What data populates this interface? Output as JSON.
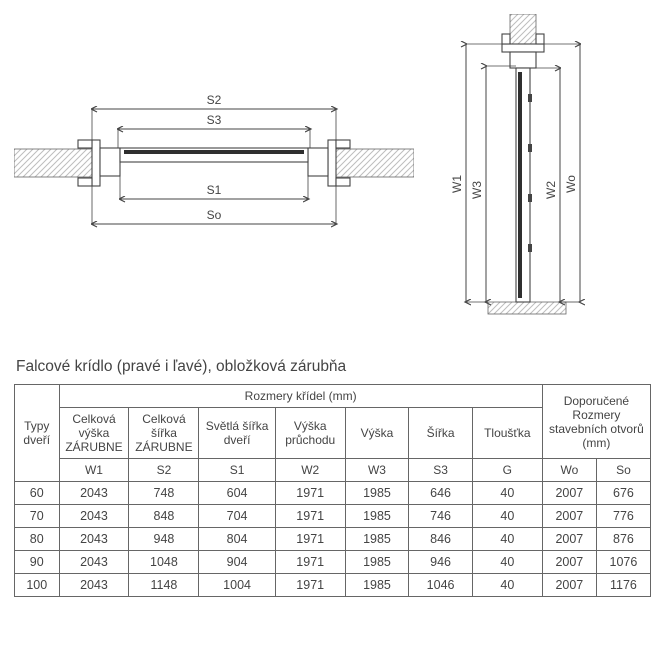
{
  "title": "Falcové krídlo (pravé i ľavé), obložková zárubňa",
  "diagram_top": {
    "labels": {
      "S2": "S2",
      "S3": "S3",
      "S1": "S1",
      "So": "So"
    },
    "colors": {
      "wall_hatch": "#bdbdbd",
      "line": "#444444",
      "door_accent": "#2f2f2f",
      "background": "#ffffff"
    }
  },
  "diagram_side": {
    "labels": {
      "W1": "W1",
      "W3": "W3",
      "W2": "W2",
      "Wo": "Wo"
    },
    "colors": {
      "wall_hatch": "#bdbdbd",
      "line": "#444444",
      "door_accent": "#2f2f2f",
      "background": "#ffffff"
    }
  },
  "table": {
    "group_headers": {
      "type": "Typy dveří",
      "wing_dims": "Rozmery křídel (mm)",
      "opening_dims": "Doporučené Rozmery stavebních otvorů (mm)"
    },
    "columns": [
      {
        "label": "Celková výška ZÁRUBNE",
        "symbol": "W1"
      },
      {
        "label": "Celková šířka ZÁRUBNE",
        "symbol": "S2"
      },
      {
        "label": "Světlá šířka dveří",
        "symbol": "S1"
      },
      {
        "label": "Výška průchodu",
        "symbol": "W2"
      },
      {
        "label": "Výška",
        "symbol": "W3"
      },
      {
        "label": "Šířka",
        "symbol": "S3"
      },
      {
        "label": "Tloušťka",
        "symbol": "G"
      },
      {
        "symbol": "Wo"
      },
      {
        "symbol": "So"
      }
    ],
    "rows": [
      {
        "type": "60",
        "W1": "2043",
        "S2": "748",
        "S1": "604",
        "W2": "1971",
        "W3": "1985",
        "S3": "646",
        "G": "40",
        "Wo": "2007",
        "So": "676"
      },
      {
        "type": "70",
        "W1": "2043",
        "S2": "848",
        "S1": "704",
        "W2": "1971",
        "W3": "1985",
        "S3": "746",
        "G": "40",
        "Wo": "2007",
        "So": "776"
      },
      {
        "type": "80",
        "W1": "2043",
        "S2": "948",
        "S1": "804",
        "W2": "1971",
        "W3": "1985",
        "S3": "846",
        "G": "40",
        "Wo": "2007",
        "So": "876"
      },
      {
        "type": "90",
        "W1": "2043",
        "S2": "1048",
        "S1": "904",
        "W2": "1971",
        "W3": "1985",
        "S3": "946",
        "G": "40",
        "Wo": "2007",
        "So": "1076"
      },
      {
        "type": "100",
        "W1": "2043",
        "S2": "1148",
        "S1": "1004",
        "W2": "1971",
        "W3": "1985",
        "S3": "1046",
        "G": "40",
        "Wo": "2007",
        "So": "1176"
      }
    ],
    "style": {
      "border_color": "#666666",
      "text_color": "#444444",
      "font_size": 12.5,
      "header_font_size": 12
    }
  }
}
